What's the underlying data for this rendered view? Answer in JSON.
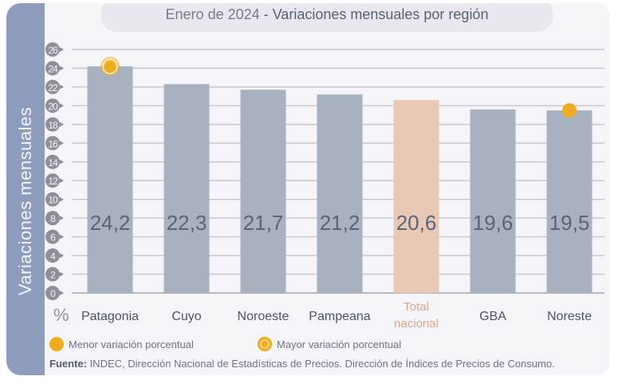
{
  "title": {
    "prefix": "Enero de 2024",
    "separator": " - ",
    "main": "Variaciones mensuales por región"
  },
  "colors": {
    "band": "#8e9dbd",
    "bar": "#a7b1bf",
    "bar_total": "#e9c9b6",
    "marker": "#f0ac1c",
    "tick_badge": "#8f8f99",
    "grid": "#c8c8d0",
    "value_text": "#5b6478"
  },
  "chart_data": {
    "type": "bar",
    "title": "Enero de 2024 - Variaciones mensuales por región",
    "xlabel": "",
    "ylabel": "Variaciones mensuales",
    "y_unit_label": "%",
    "ylim": [
      0,
      26
    ],
    "yticks": [
      0,
      2,
      4,
      6,
      8,
      10,
      12,
      14,
      16,
      18,
      20,
      22,
      24,
      26
    ],
    "grid": true,
    "categories": [
      "Patagonia",
      "Cuyo",
      "Noroeste",
      "Pampeana",
      "Total nacional",
      "GBA",
      "Noreste"
    ],
    "category_lines": [
      [
        "Patagonia"
      ],
      [
        "Cuyo"
      ],
      [
        "Noroeste"
      ],
      [
        "Pampeana"
      ],
      [
        "Total",
        "nacional"
      ],
      [
        "GBA"
      ],
      [
        "Noreste"
      ]
    ],
    "values": [
      24.2,
      22.3,
      21.7,
      21.2,
      20.6,
      19.6,
      19.5
    ],
    "value_labels": [
      "24,2",
      "22,3",
      "21,7",
      "21,2",
      "20,6",
      "19,6",
      "19,5"
    ],
    "highlight_index": 4,
    "markers": [
      {
        "category": "Patagonia",
        "type": "mayor"
      },
      {
        "category": "Noreste",
        "type": "menor"
      }
    ]
  },
  "legend": {
    "menor": "Menor variación porcentual",
    "mayor": "Mayor variación porcentual"
  },
  "source": {
    "label": "Fuente:",
    "text": " INDEC, Dirección Nacional de Estadísticas de Precios. Dirección de Índices de Precios de Consumo."
  }
}
